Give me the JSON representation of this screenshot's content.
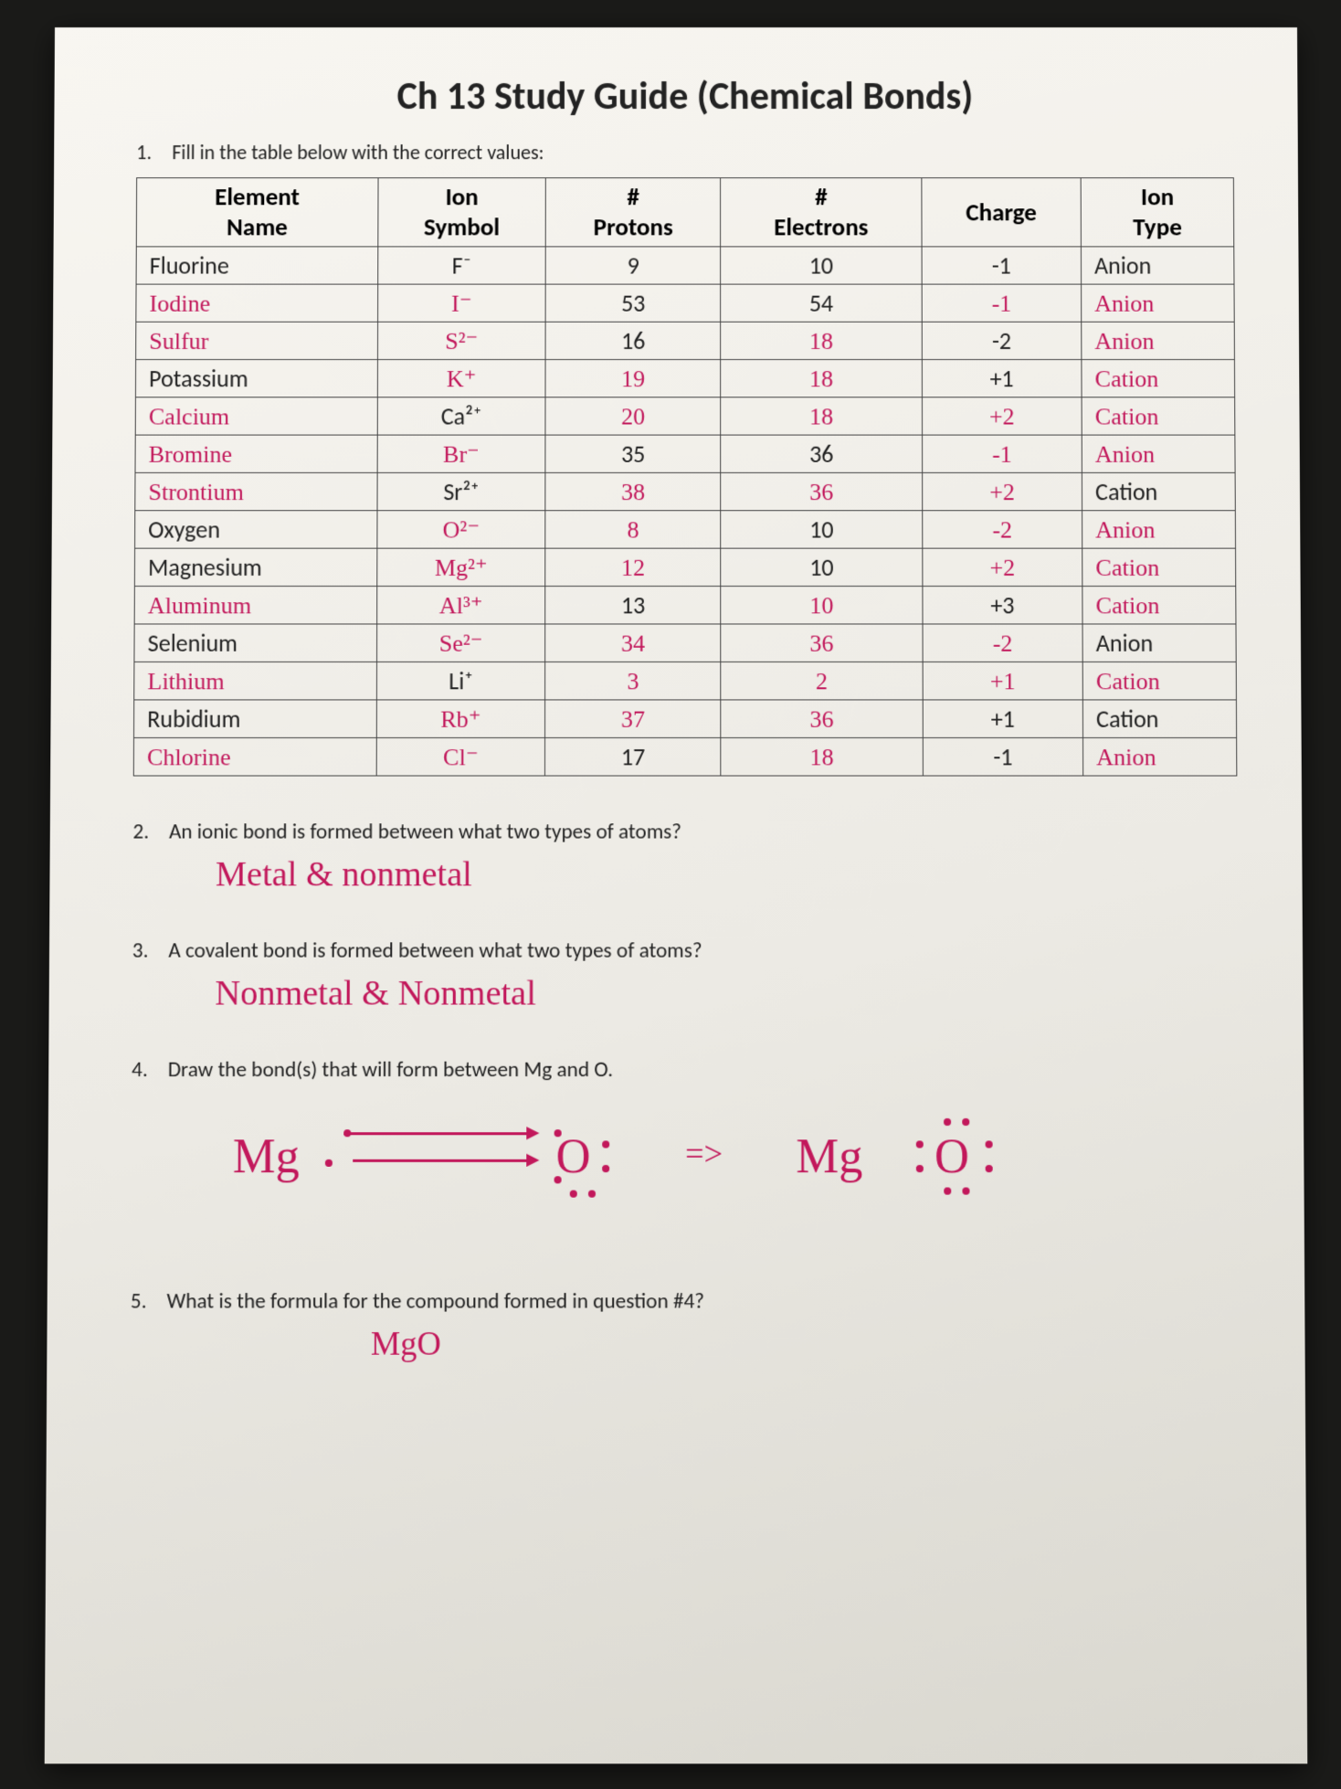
{
  "title": "Ch 13 Study Guide (Chemical Bonds)",
  "q1_label": "1.",
  "q1_text": "Fill in the table below with the correct values:",
  "table": {
    "headers": [
      "Element Name",
      "Ion Symbol",
      "# Protons",
      "# Electrons",
      "Charge",
      "Ion Type"
    ],
    "rows": [
      {
        "name": {
          "txt": "Fluorine",
          "hw": false
        },
        "ion": {
          "txt": "F⁻",
          "hw": false
        },
        "p": {
          "txt": "9",
          "hw": false
        },
        "e": {
          "txt": "10",
          "hw": false
        },
        "c": {
          "txt": "-1",
          "hw": false
        },
        "t": {
          "txt": "Anion",
          "hw": false
        }
      },
      {
        "name": {
          "txt": "Iodine",
          "hw": true
        },
        "ion": {
          "txt": "I⁻",
          "hw": true
        },
        "p": {
          "txt": "53",
          "hw": false
        },
        "e": {
          "txt": "54",
          "hw": false
        },
        "c": {
          "txt": "-1",
          "hw": true
        },
        "t": {
          "txt": "Anion",
          "hw": true
        }
      },
      {
        "name": {
          "txt": "Sulfur",
          "hw": true
        },
        "ion": {
          "txt": "S²⁻",
          "hw": true
        },
        "p": {
          "txt": "16",
          "hw": false
        },
        "e": {
          "txt": "18",
          "hw": true
        },
        "c": {
          "txt": "-2",
          "hw": false
        },
        "t": {
          "txt": "Anion",
          "hw": true
        }
      },
      {
        "name": {
          "txt": "Potassium",
          "hw": false
        },
        "ion": {
          "txt": "K⁺",
          "hw": true
        },
        "p": {
          "txt": "19",
          "hw": true
        },
        "e": {
          "txt": "18",
          "hw": true
        },
        "c": {
          "txt": "+1",
          "hw": false
        },
        "t": {
          "txt": "Cation",
          "hw": true
        }
      },
      {
        "name": {
          "txt": "Calcium",
          "hw": true
        },
        "ion": {
          "txt": "Ca²⁺",
          "hw": false
        },
        "p": {
          "txt": "20",
          "hw": true
        },
        "e": {
          "txt": "18",
          "hw": true
        },
        "c": {
          "txt": "+2",
          "hw": true
        },
        "t": {
          "txt": "Cation",
          "hw": true
        }
      },
      {
        "name": {
          "txt": "Bromine",
          "hw": true
        },
        "ion": {
          "txt": "Br⁻",
          "hw": true
        },
        "p": {
          "txt": "35",
          "hw": false
        },
        "e": {
          "txt": "36",
          "hw": false
        },
        "c": {
          "txt": "-1",
          "hw": true
        },
        "t": {
          "txt": "Anion",
          "hw": true
        }
      },
      {
        "name": {
          "txt": "Strontium",
          "hw": true
        },
        "ion": {
          "txt": "Sr²⁺",
          "hw": false
        },
        "p": {
          "txt": "38",
          "hw": true
        },
        "e": {
          "txt": "36",
          "hw": true
        },
        "c": {
          "txt": "+2",
          "hw": true
        },
        "t": {
          "txt": "Cation",
          "hw": false
        }
      },
      {
        "name": {
          "txt": "Oxygen",
          "hw": false
        },
        "ion": {
          "txt": "O²⁻",
          "hw": true
        },
        "p": {
          "txt": "8",
          "hw": true
        },
        "e": {
          "txt": "10",
          "hw": false
        },
        "c": {
          "txt": "-2",
          "hw": true
        },
        "t": {
          "txt": "Anion",
          "hw": true
        }
      },
      {
        "name": {
          "txt": "Magnesium",
          "hw": false
        },
        "ion": {
          "txt": "Mg²⁺",
          "hw": true
        },
        "p": {
          "txt": "12",
          "hw": true
        },
        "e": {
          "txt": "10",
          "hw": false
        },
        "c": {
          "txt": "+2",
          "hw": true
        },
        "t": {
          "txt": "Cation",
          "hw": true
        }
      },
      {
        "name": {
          "txt": "Aluminum",
          "hw": true
        },
        "ion": {
          "txt": "Al³⁺",
          "hw": true
        },
        "p": {
          "txt": "13",
          "hw": false
        },
        "e": {
          "txt": "10",
          "hw": true
        },
        "c": {
          "txt": "+3",
          "hw": false
        },
        "t": {
          "txt": "Cation",
          "hw": true
        }
      },
      {
        "name": {
          "txt": "Selenium",
          "hw": false
        },
        "ion": {
          "txt": "Se²⁻",
          "hw": true
        },
        "p": {
          "txt": "34",
          "hw": true
        },
        "e": {
          "txt": "36",
          "hw": true
        },
        "c": {
          "txt": "-2",
          "hw": true
        },
        "t": {
          "txt": "Anion",
          "hw": false
        }
      },
      {
        "name": {
          "txt": "Lithium",
          "hw": true
        },
        "ion": {
          "txt": "Li⁺",
          "hw": false
        },
        "p": {
          "txt": "3",
          "hw": true
        },
        "e": {
          "txt": "2",
          "hw": true
        },
        "c": {
          "txt": "+1",
          "hw": true
        },
        "t": {
          "txt": "Cation",
          "hw": true
        }
      },
      {
        "name": {
          "txt": "Rubidium",
          "hw": false
        },
        "ion": {
          "txt": "Rb⁺",
          "hw": true
        },
        "p": {
          "txt": "37",
          "hw": true
        },
        "e": {
          "txt": "36",
          "hw": true
        },
        "c": {
          "txt": "+1",
          "hw": false
        },
        "t": {
          "txt": "Cation",
          "hw": false
        }
      },
      {
        "name": {
          "txt": "Chlorine",
          "hw": true
        },
        "ion": {
          "txt": "Cl⁻",
          "hw": true
        },
        "p": {
          "txt": "17",
          "hw": false
        },
        "e": {
          "txt": "18",
          "hw": true
        },
        "c": {
          "txt": "-1",
          "hw": false
        },
        "t": {
          "txt": "Anion",
          "hw": true
        }
      }
    ]
  },
  "q2_label": "2.",
  "q2_text": "An ionic bond is formed between what two types of atoms?",
  "q2_ans": "Metal & nonmetal",
  "q3_label": "3.",
  "q3_text": "A covalent bond is formed between what two types of atoms?",
  "q3_ans": "Nonmetal & Nonmetal",
  "q4_label": "4.",
  "q4_text": "Draw the bond(s) that will form between Mg and O.",
  "q4_diagram": {
    "mg_left": "Mg",
    "o_mid": "O",
    "arrow": "=>",
    "mg_right": "Mg",
    "o_right": "O"
  },
  "q5_label": "5.",
  "q5_text": "What is the formula for the compound formed in question #4?",
  "q5_ans": "MgO",
  "colors": {
    "ink_printed": "#222222",
    "ink_hand": "#c2185b",
    "paper_bg": "#f5f2ed",
    "border": "#444444"
  }
}
